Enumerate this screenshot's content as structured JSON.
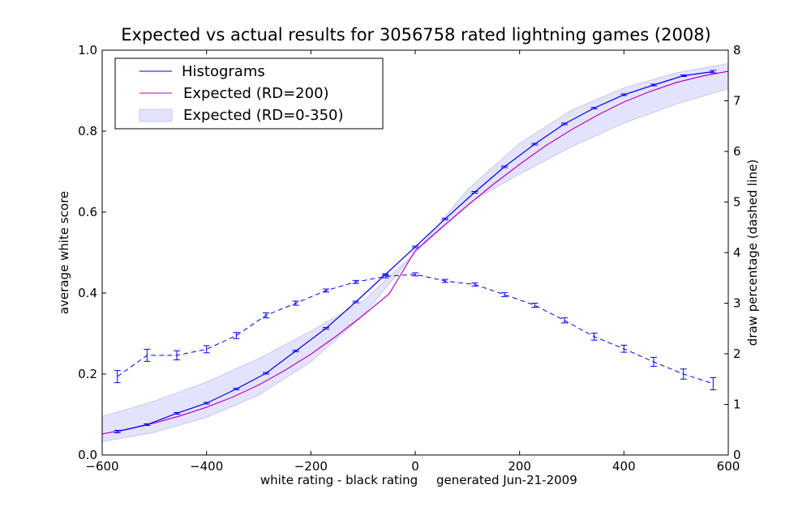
{
  "chart_data": {
    "type": "line",
    "title": "Expected vs actual results for 3056758 rated lightning games (2008)",
    "xlabel": "white rating - black rating",
    "footnote": "generated Jun-21-2009",
    "ylabel": "average white score",
    "y2label": "draw percentage (dashed line)",
    "xlim": [
      -600,
      600
    ],
    "ylim": [
      0,
      1
    ],
    "y2lim": [
      0,
      8
    ],
    "xticks": [
      "−600",
      "−400",
      "−200",
      "0",
      "200",
      "400",
      "600"
    ],
    "yticks": [
      "0.0",
      "0.2",
      "0.4",
      "0.6",
      "0.8",
      "1.0"
    ],
    "y2ticks": [
      "0",
      "1",
      "2",
      "3",
      "4",
      "5",
      "6",
      "7",
      "8"
    ],
    "legend": {
      "position": "top-left",
      "entries": [
        "Histograms",
        "Expected (RD=200)",
        "Expected (RD=0-350)"
      ]
    },
    "colors": {
      "histograms": "#0000ff",
      "expected": "#bf00bf",
      "band_fill": "#e3e3fb",
      "band_edge": "#c9c9f3",
      "draw_line": "#0000ff"
    },
    "series": [
      {
        "name": "Histograms",
        "axis": "left",
        "x": [
          -571,
          -514,
          -457,
          -400,
          -343,
          -286,
          -229,
          -171,
          -114,
          -57,
          0,
          57,
          114,
          171,
          229,
          286,
          343,
          400,
          457,
          514,
          571
        ],
        "values": [
          0.058,
          0.075,
          0.103,
          0.128,
          0.163,
          0.202,
          0.257,
          0.313,
          0.378,
          0.446,
          0.514,
          0.583,
          0.649,
          0.712,
          0.768,
          0.818,
          0.857,
          0.89,
          0.914,
          0.937,
          0.947
        ],
        "errors": [
          0.003,
          0.002,
          0.002,
          0.002,
          0.002,
          0.002,
          0.002,
          0.002,
          0.002,
          0.002,
          0.002,
          0.002,
          0.002,
          0.002,
          0.002,
          0.002,
          0.002,
          0.002,
          0.002,
          0.002,
          0.003
        ]
      },
      {
        "name": "Expected (RD=200)",
        "axis": "left",
        "x": [
          -600,
          -550,
          -500,
          -450,
          -400,
          -350,
          -300,
          -250,
          -200,
          -150,
          -100,
          -50,
          0,
          50,
          100,
          150,
          200,
          250,
          300,
          350,
          400,
          450,
          500,
          550,
          600
        ],
        "values": [
          0.052,
          0.064,
          0.079,
          0.097,
          0.118,
          0.143,
          0.173,
          0.209,
          0.249,
          0.295,
          0.345,
          0.398,
          0.505,
          0.561,
          0.616,
          0.669,
          0.718,
          0.764,
          0.804,
          0.84,
          0.872,
          0.898,
          0.92,
          0.936,
          0.948
        ]
      },
      {
        "name": "Expected (RD=0-350)",
        "axis": "left",
        "x": [
          -600,
          -500,
          -400,
          -300,
          -200,
          -100,
          0,
          100,
          200,
          300,
          400,
          500,
          600
        ],
        "upper": [
          0.095,
          0.133,
          0.18,
          0.238,
          0.306,
          0.38,
          0.5,
          0.655,
          0.77,
          0.852,
          0.907,
          0.944,
          0.967
        ],
        "lower": [
          0.033,
          0.056,
          0.093,
          0.148,
          0.23,
          0.345,
          0.5,
          0.62,
          0.694,
          0.762,
          0.82,
          0.867,
          0.905
        ]
      },
      {
        "name": "Draw percentage",
        "axis": "right",
        "style": "dashed",
        "x": [
          -571,
          -514,
          -457,
          -400,
          -343,
          -286,
          -229,
          -171,
          -114,
          -57,
          0,
          57,
          114,
          171,
          229,
          286,
          343,
          400,
          457,
          514,
          571
        ],
        "values": [
          1.55,
          1.97,
          1.97,
          2.09,
          2.36,
          2.76,
          3.0,
          3.25,
          3.42,
          3.53,
          3.57,
          3.44,
          3.37,
          3.17,
          2.96,
          2.66,
          2.34,
          2.1,
          1.84,
          1.6,
          1.41
        ],
        "errors": [
          0.12,
          0.12,
          0.09,
          0.07,
          0.06,
          0.05,
          0.04,
          0.03,
          0.03,
          0.03,
          0.03,
          0.03,
          0.03,
          0.04,
          0.04,
          0.05,
          0.07,
          0.07,
          0.09,
          0.1,
          0.12
        ]
      }
    ]
  }
}
